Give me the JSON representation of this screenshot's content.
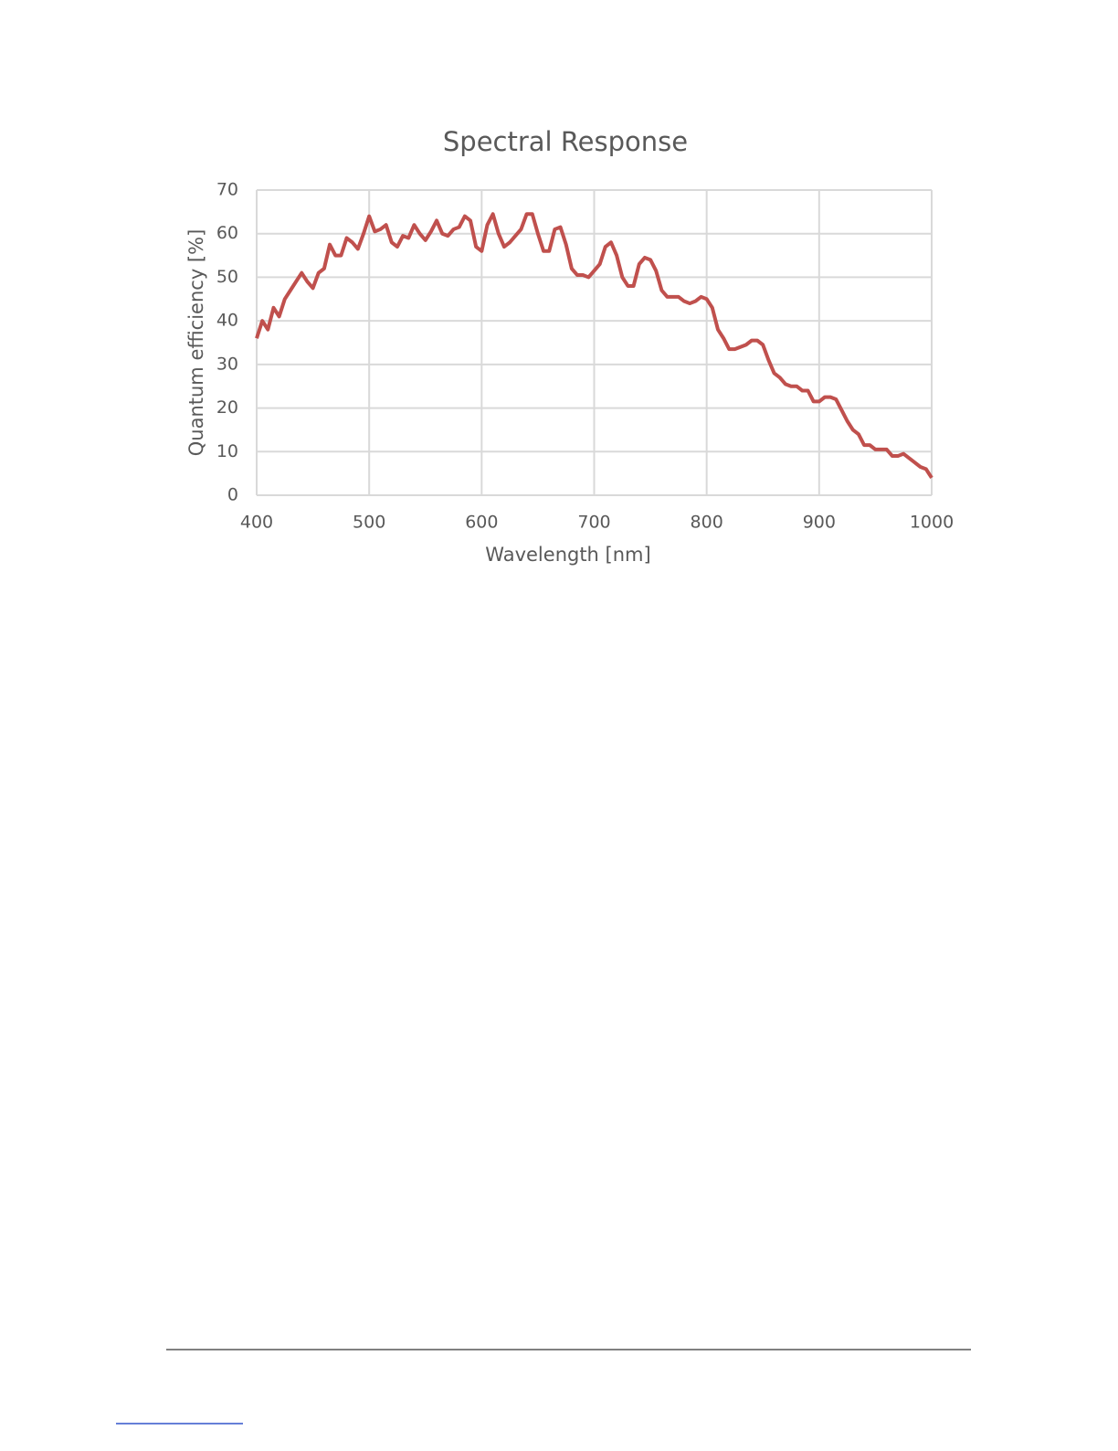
{
  "chart_data": {
    "type": "line",
    "title": "Spectral Response",
    "x_label": "Wavelength [nm]",
    "y_label": "Quantum efficiency [%]",
    "x": [
      400,
      405,
      410,
      415,
      420,
      425,
      430,
      435,
      440,
      445,
      450,
      455,
      460,
      465,
      470,
      475,
      480,
      485,
      490,
      495,
      500,
      505,
      510,
      515,
      520,
      525,
      530,
      535,
      540,
      545,
      550,
      555,
      560,
      565,
      570,
      575,
      580,
      585,
      590,
      595,
      600,
      605,
      610,
      615,
      620,
      625,
      630,
      635,
      640,
      645,
      650,
      655,
      660,
      665,
      670,
      675,
      680,
      685,
      690,
      695,
      700,
      705,
      710,
      715,
      720,
      725,
      730,
      735,
      740,
      745,
      750,
      755,
      760,
      765,
      770,
      775,
      780,
      785,
      790,
      795,
      800,
      805,
      810,
      815,
      820,
      825,
      830,
      835,
      840,
      845,
      850,
      855,
      860,
      865,
      870,
      875,
      880,
      885,
      890,
      895,
      900,
      905,
      910,
      915,
      920,
      925,
      930,
      935,
      940,
      945,
      950,
      955,
      960,
      965,
      970,
      975,
      980,
      985,
      990,
      995,
      1000
    ],
    "series": [
      {
        "name": "Quantum efficiency",
        "color": "#c0504d",
        "values": [
          36,
          40,
          38,
          43,
          41,
          45,
          47,
          49,
          51,
          49,
          47.5,
          51,
          52,
          57.5,
          55,
          55,
          59,
          58,
          56.5,
          60,
          64,
          60.5,
          61,
          62,
          58,
          57,
          59.5,
          59,
          62,
          60,
          58.5,
          60.5,
          63,
          60,
          59.5,
          61,
          61.5,
          64,
          63,
          57,
          56,
          62,
          64.5,
          60,
          57,
          58,
          59.5,
          61,
          64.5,
          64.5,
          60,
          56,
          56,
          61,
          61.5,
          57.5,
          52,
          50.5,
          50.5,
          50,
          51.5,
          53,
          57,
          58,
          55,
          50,
          48,
          48,
          53,
          54.5,
          54,
          51.5,
          47,
          45.5,
          45.5,
          45.5,
          44.5,
          44,
          44.5,
          45.5,
          45,
          43,
          38,
          36,
          33.5,
          33.5,
          34,
          34.5,
          35.5,
          35.5,
          34.5,
          31,
          28,
          27,
          25.5,
          25,
          25,
          24,
          24,
          21.5,
          21.5,
          22.5,
          22.5,
          22,
          19.5,
          17,
          15,
          14,
          11.5,
          11.5,
          10.5,
          10.5,
          10.5,
          9,
          9,
          9.5,
          8.5,
          7.5,
          6.5,
          6,
          4
        ]
      }
    ],
    "xlim": [
      400,
      1000
    ],
    "xticks": [
      400,
      500,
      600,
      700,
      800,
      900,
      1000
    ],
    "ylim": [
      0,
      70
    ],
    "yticks": [
      0,
      10,
      20,
      30,
      40,
      50,
      60,
      70
    ],
    "grid": true
  }
}
